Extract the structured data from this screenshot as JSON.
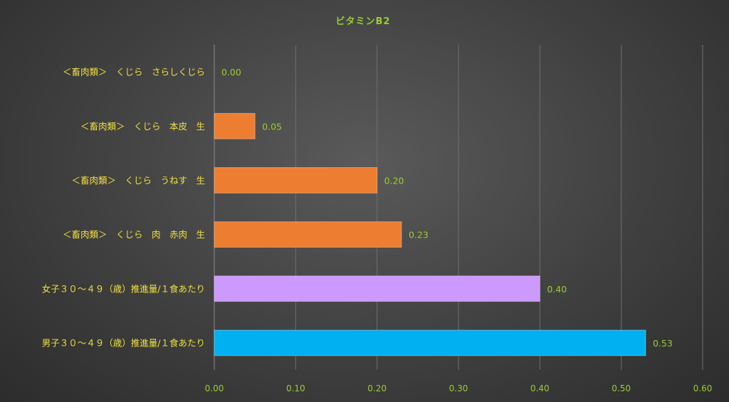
{
  "chart_data": {
    "type": "bar",
    "orientation": "horizontal",
    "title": "ビタミンB2",
    "categories": [
      "＜畜肉類＞　くじら　さらしくじら",
      "＜畜肉類＞　くじら　本皮　生",
      "＜畜肉類＞　くじら　うねす　生",
      "＜畜肉類＞　くじら　肉　赤肉　生",
      "女子３０～４９（歳）推進量/１食あたり",
      "男子３０～４９（歳）推進量/１食あたり"
    ],
    "values": [
      0.0,
      0.05,
      0.2,
      0.23,
      0.4,
      0.53
    ],
    "value_labels": [
      "0.00",
      "0.05",
      "0.20",
      "0.23",
      "0.40",
      "0.53"
    ],
    "bar_colors": [
      "#ed7d31",
      "#ed7d31",
      "#ed7d31",
      "#ed7d31",
      "#cc99ff",
      "#00b0f0"
    ],
    "xlim": [
      0,
      0.6
    ],
    "xticks": [
      "0.00",
      "0.10",
      "0.20",
      "0.30",
      "0.40",
      "0.50",
      "0.60"
    ],
    "xtick_values": [
      0,
      0.1,
      0.2,
      0.3,
      0.4,
      0.5,
      0.6
    ],
    "grid": true,
    "legend": "none"
  }
}
